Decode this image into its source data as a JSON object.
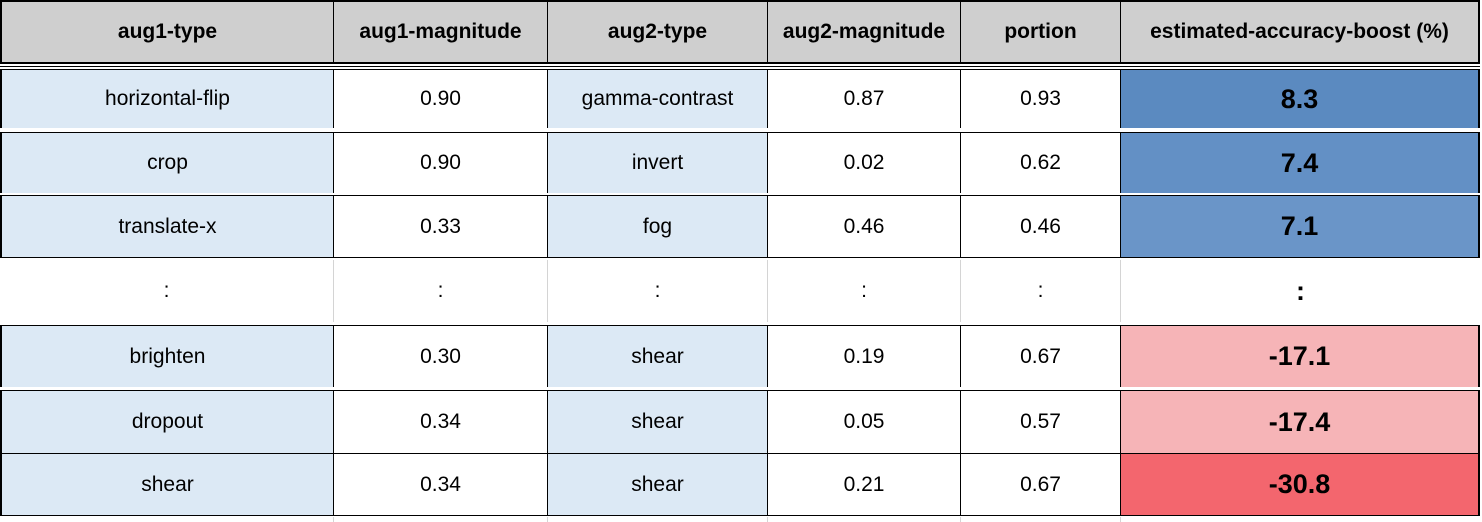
{
  "chart_data": {
    "type": "table",
    "columns": [
      "aug1-type",
      "aug1-magnitude",
      "aug2-type",
      "aug2-magnitude",
      "portion",
      "estimated-accuracy-boost (%)"
    ],
    "rows": [
      [
        "horizontal-flip",
        "0.90",
        "gamma-contrast",
        "0.87",
        "0.93",
        "8.3"
      ],
      [
        "crop",
        "0.90",
        "invert",
        "0.02",
        "0.62",
        "7.4"
      ],
      [
        "translate-x",
        "0.33",
        "fog",
        "0.46",
        "0.46",
        "7.1"
      ],
      [
        ":",
        ":",
        ":",
        ":",
        ":",
        ":"
      ],
      [
        "brighten",
        "0.30",
        "shear",
        "0.19",
        "0.67",
        "-17.1"
      ],
      [
        "dropout",
        "0.34",
        "shear",
        "0.05",
        "0.57",
        "-17.4"
      ],
      [
        "shear",
        "0.34",
        "shear",
        "0.21",
        "0.67",
        "-30.8"
      ]
    ],
    "boost_values": [
      8.3,
      7.4,
      7.1,
      null,
      -17.1,
      -17.4,
      -30.8
    ]
  },
  "colors": {
    "header_bg": "#cfcfcf",
    "type_cell_bg": "#dce9f5",
    "white": "#ffffff",
    "border": "#000000",
    "boost_positive_strong": "#5b8ac0",
    "boost_positive_mid": "#6390c5",
    "boost_positive_light": "#6a95c8",
    "boost_negative_light": "#f6b4b7",
    "boost_negative_strong": "#f3666e"
  }
}
